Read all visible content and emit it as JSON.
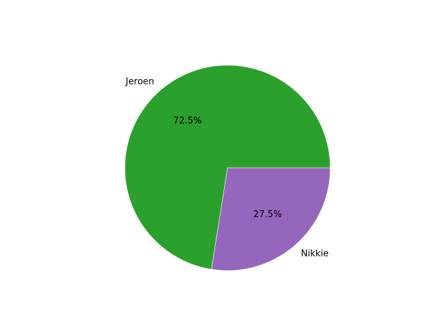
{
  "chart_data": {
    "type": "pie",
    "title": "",
    "categories": [
      "Jeroen",
      "Nikkie"
    ],
    "values": [
      72.5,
      27.5
    ],
    "percent_labels": [
      "72.5%",
      "27.5%"
    ],
    "colors": [
      "#2ca02c",
      "#9467bd"
    ],
    "start_angle_deg": 0,
    "direction": "counterclockwise",
    "legend": "none"
  }
}
